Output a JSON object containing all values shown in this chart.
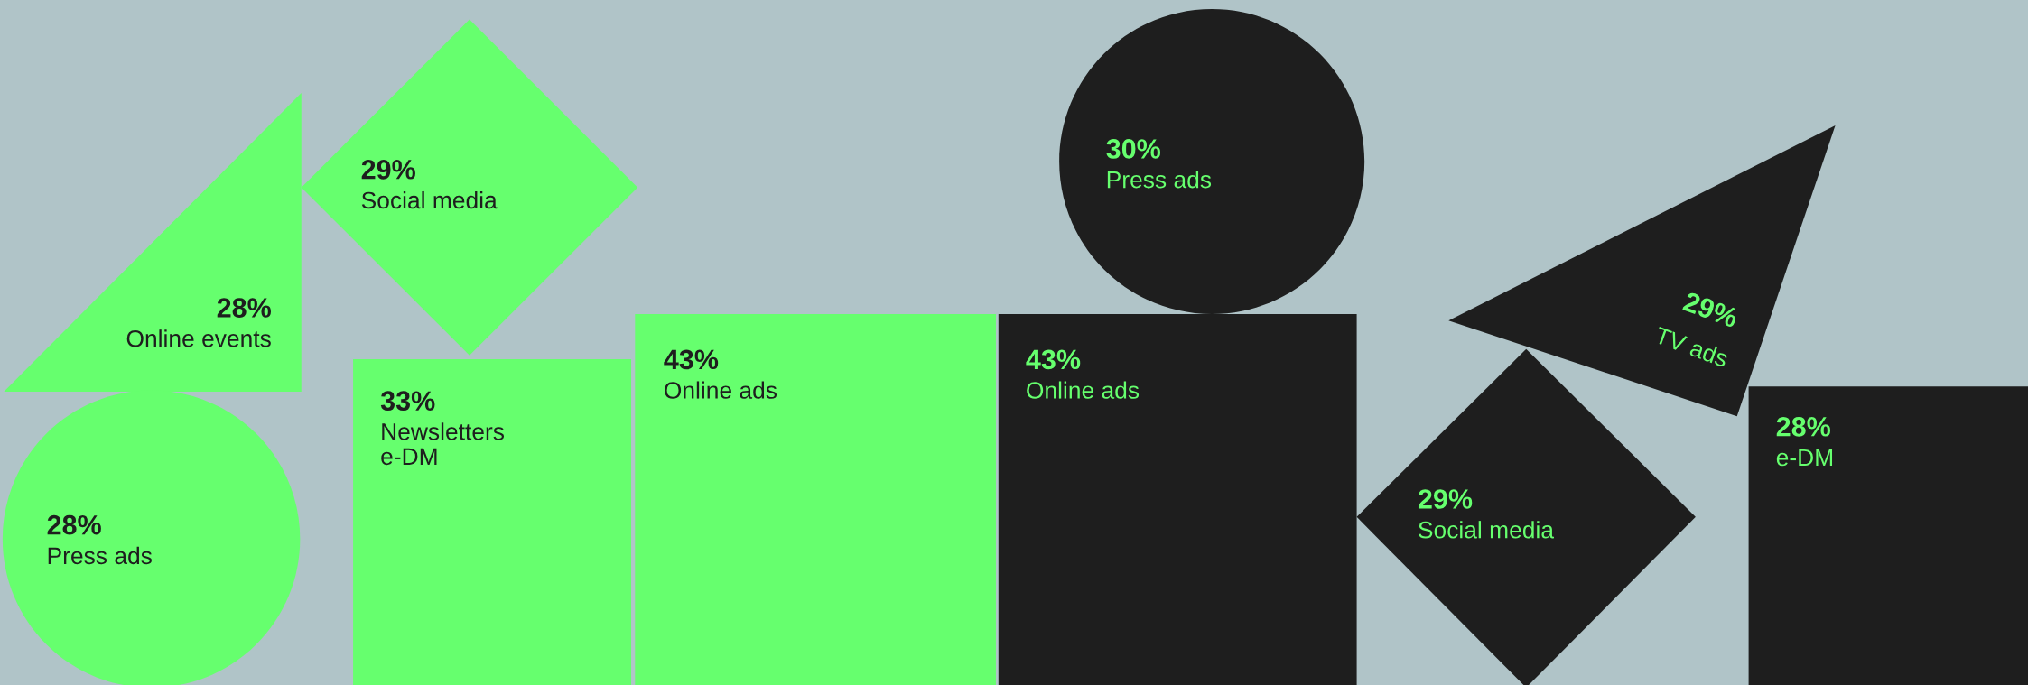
{
  "chart_data": {
    "type": "other",
    "categories": [
      "Online events",
      "Social media",
      "Press ads",
      "Newsletters\ne-DM",
      "Online ads",
      "Online ads",
      "Press ads",
      "Social media",
      "TV ads",
      "e-DM"
    ],
    "values": [
      28,
      29,
      28,
      33,
      43,
      43,
      30,
      29,
      29,
      28
    ],
    "value_labels": [
      "28%",
      "29%",
      "28%",
      "33%",
      "43%",
      "43%",
      "30%",
      "29%",
      "29%",
      "28%"
    ],
    "colors": [
      "#66ff6e",
      "#66ff6e",
      "#66ff6e",
      "#66ff6e",
      "#66ff6e",
      "#1e1e1e",
      "#1e1e1e",
      "#1e1e1e",
      "#1e1e1e",
      "#1e1e1e"
    ]
  }
}
